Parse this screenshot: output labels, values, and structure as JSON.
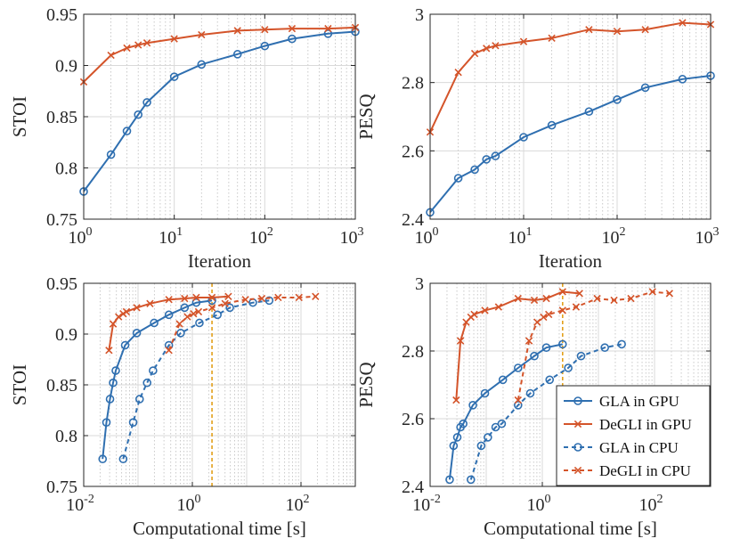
{
  "chart_data": [
    {
      "id": "top-left",
      "type": "line",
      "xscale": "log",
      "xlim": [
        1,
        1000
      ],
      "ylim": [
        0.75,
        0.95
      ],
      "xlabel": "Iteration",
      "ylabel": "STOI",
      "xticks": [
        {
          "value": 1,
          "base": "10",
          "exp": "0"
        },
        {
          "value": 10,
          "base": "10",
          "exp": "1"
        },
        {
          "value": 100,
          "base": "10",
          "exp": "2"
        },
        {
          "value": 1000,
          "base": "10",
          "exp": "3"
        }
      ],
      "yticks": [
        {
          "value": 0.75,
          "label": "0.75"
        },
        {
          "value": 0.8,
          "label": "0.8"
        },
        {
          "value": 0.85,
          "label": "0.85"
        },
        {
          "value": 0.9,
          "label": "0.9"
        },
        {
          "value": 0.95,
          "label": "0.95"
        }
      ],
      "series": [
        {
          "name": "GLA in GPU",
          "color": "#2f6fb0",
          "marker": "circle",
          "dashed": false,
          "x": [
            1,
            2,
            3,
            4,
            5,
            10,
            20,
            50,
            100,
            200,
            500,
            1000
          ],
          "y": [
            0.777,
            0.813,
            0.836,
            0.852,
            0.864,
            0.889,
            0.901,
            0.911,
            0.919,
            0.926,
            0.931,
            0.933
          ]
        },
        {
          "name": "DeGLI in GPU",
          "color": "#d4542a",
          "marker": "x",
          "dashed": false,
          "x": [
            1,
            2,
            3,
            4,
            5,
            10,
            20,
            50,
            100,
            200,
            500,
            1000
          ],
          "y": [
            0.884,
            0.91,
            0.917,
            0.92,
            0.922,
            0.926,
            0.93,
            0.934,
            0.935,
            0.936,
            0.936,
            0.937
          ]
        }
      ]
    },
    {
      "id": "top-right",
      "type": "line",
      "xscale": "log",
      "xlim": [
        1,
        1000
      ],
      "ylim": [
        2.4,
        3.0
      ],
      "xlabel": "Iteration",
      "ylabel": "PESQ",
      "xticks": [
        {
          "value": 1,
          "base": "10",
          "exp": "0"
        },
        {
          "value": 10,
          "base": "10",
          "exp": "1"
        },
        {
          "value": 100,
          "base": "10",
          "exp": "2"
        },
        {
          "value": 1000,
          "base": "10",
          "exp": "3"
        }
      ],
      "yticks": [
        {
          "value": 2.4,
          "label": "2.4"
        },
        {
          "value": 2.6,
          "label": "2.6"
        },
        {
          "value": 2.8,
          "label": "2.8"
        },
        {
          "value": 3.0,
          "label": "3"
        }
      ],
      "series": [
        {
          "name": "GLA in GPU",
          "color": "#2f6fb0",
          "marker": "circle",
          "dashed": false,
          "x": [
            1,
            2,
            3,
            4,
            5,
            10,
            20,
            50,
            100,
            200,
            500,
            1000
          ],
          "y": [
            2.42,
            2.52,
            2.545,
            2.575,
            2.585,
            2.64,
            2.675,
            2.715,
            2.75,
            2.785,
            2.81,
            2.82
          ]
        },
        {
          "name": "DeGLI in GPU",
          "color": "#d4542a",
          "marker": "x",
          "dashed": false,
          "x": [
            1,
            2,
            3,
            4,
            5,
            10,
            20,
            50,
            100,
            200,
            500,
            1000
          ],
          "y": [
            2.655,
            2.83,
            2.885,
            2.9,
            2.908,
            2.92,
            2.93,
            2.955,
            2.95,
            2.955,
            2.975,
            2.97
          ]
        }
      ]
    },
    {
      "id": "bottom-left",
      "type": "line",
      "xscale": "log",
      "xlim": [
        0.01,
        1000
      ],
      "ylim": [
        0.75,
        0.95
      ],
      "xlabel": "Computational time [s]",
      "ylabel": "STOI",
      "vline": {
        "x": 2.3,
        "color": "#e3a01b"
      },
      "xticks": [
        {
          "value": 0.01,
          "base": "10",
          "exp": "-2"
        },
        {
          "value": 1,
          "base": "10",
          "exp": "0"
        },
        {
          "value": 100,
          "base": "10",
          "exp": "2"
        }
      ],
      "yticks": [
        {
          "value": 0.75,
          "label": "0.75"
        },
        {
          "value": 0.8,
          "label": "0.8"
        },
        {
          "value": 0.85,
          "label": "0.85"
        },
        {
          "value": 0.9,
          "label": "0.9"
        },
        {
          "value": 0.95,
          "label": "0.95"
        }
      ],
      "series": [
        {
          "name": "GLA in GPU",
          "color": "#2f6fb0",
          "marker": "circle",
          "dashed": false,
          "x": [
            0.0223,
            0.0262,
            0.0305,
            0.0348,
            0.0389,
            0.0579,
            0.0948,
            0.198,
            0.37,
            0.72,
            1.18,
            2.3
          ],
          "y": [
            0.777,
            0.813,
            0.836,
            0.852,
            0.864,
            0.889,
            0.901,
            0.911,
            0.919,
            0.926,
            0.931,
            0.933
          ]
        },
        {
          "name": "DeGLI in GPU",
          "color": "#d4542a",
          "marker": "x",
          "dashed": false,
          "x": [
            0.0292,
            0.0348,
            0.0439,
            0.0533,
            0.0611,
            0.0948,
            0.166,
            0.37,
            0.72,
            1.18,
            2.3,
            4.6
          ],
          "y": [
            0.884,
            0.91,
            0.917,
            0.92,
            0.922,
            0.926,
            0.93,
            0.934,
            0.935,
            0.936,
            0.936,
            0.937
          ]
        },
        {
          "name": "GLA in CPU",
          "color": "#2f6fb0",
          "marker": "circle",
          "dashed": true,
          "x": [
            0.0533,
            0.0814,
            0.107,
            0.147,
            0.189,
            0.37,
            0.61,
            1.35,
            2.9,
            4.9,
            13.0,
            26.0
          ],
          "y": [
            0.777,
            0.813,
            0.836,
            0.852,
            0.864,
            0.889,
            0.901,
            0.911,
            0.919,
            0.926,
            0.931,
            0.933
          ]
        },
        {
          "name": "DeGLI in CPU",
          "color": "#d4542a",
          "marker": "x",
          "dashed": true,
          "x": [
            0.37,
            0.58,
            0.81,
            1.05,
            1.3,
            2.3,
            4.0,
            9.5,
            19.0,
            38.0,
            92.0,
            185.0
          ],
          "y": [
            0.884,
            0.91,
            0.917,
            0.92,
            0.922,
            0.926,
            0.93,
            0.934,
            0.935,
            0.936,
            0.936,
            0.937
          ]
        }
      ]
    },
    {
      "id": "bottom-right",
      "type": "line",
      "xscale": "log",
      "xlim": [
        0.01,
        1000
      ],
      "ylim": [
        2.4,
        3.0
      ],
      "xlabel": "Computational time [s]",
      "ylabel": "PESQ",
      "vline": {
        "x": 2.3,
        "color": "#e3a01b"
      },
      "legend": "bottom-right",
      "xticks": [
        {
          "value": 0.01,
          "base": "10",
          "exp": "-2"
        },
        {
          "value": 1,
          "base": "10",
          "exp": "0"
        },
        {
          "value": 100,
          "base": "10",
          "exp": "2"
        }
      ],
      "yticks": [
        {
          "value": 2.4,
          "label": "2.4"
        },
        {
          "value": 2.6,
          "label": "2.6"
        },
        {
          "value": 2.8,
          "label": "2.8"
        },
        {
          "value": 3.0,
          "label": "3"
        }
      ],
      "series": [
        {
          "name": "GLA in GPU",
          "color": "#2f6fb0",
          "marker": "circle",
          "dashed": false,
          "x": [
            0.0223,
            0.0262,
            0.0305,
            0.0348,
            0.0389,
            0.0579,
            0.0948,
            0.198,
            0.37,
            0.72,
            1.18,
            2.3
          ],
          "y": [
            2.42,
            2.52,
            2.545,
            2.575,
            2.585,
            2.64,
            2.675,
            2.715,
            2.75,
            2.785,
            2.81,
            2.82
          ]
        },
        {
          "name": "DeGLI in GPU",
          "color": "#d4542a",
          "marker": "x",
          "dashed": false,
          "x": [
            0.0292,
            0.0348,
            0.0439,
            0.0533,
            0.0611,
            0.0948,
            0.166,
            0.37,
            0.72,
            1.18,
            2.3,
            4.6
          ],
          "y": [
            2.655,
            2.83,
            2.885,
            2.9,
            2.908,
            2.92,
            2.93,
            2.955,
            2.95,
            2.955,
            2.975,
            2.97
          ]
        },
        {
          "name": "GLA in CPU",
          "color": "#2f6fb0",
          "marker": "circle",
          "dashed": true,
          "x": [
            0.0533,
            0.0814,
            0.107,
            0.147,
            0.189,
            0.37,
            0.61,
            1.35,
            2.9,
            4.9,
            13.0,
            26.0
          ],
          "y": [
            2.42,
            2.52,
            2.545,
            2.575,
            2.585,
            2.64,
            2.675,
            2.715,
            2.75,
            2.785,
            2.81,
            2.82
          ]
        },
        {
          "name": "DeGLI in CPU",
          "color": "#d4542a",
          "marker": "x",
          "dashed": true,
          "x": [
            0.37,
            0.58,
            0.81,
            1.05,
            1.3,
            2.3,
            4.0,
            9.5,
            19.0,
            38.0,
            92.0,
            185.0
          ],
          "y": [
            2.655,
            2.83,
            2.885,
            2.9,
            2.908,
            2.92,
            2.93,
            2.955,
            2.95,
            2.955,
            2.975,
            2.97
          ]
        }
      ]
    }
  ]
}
